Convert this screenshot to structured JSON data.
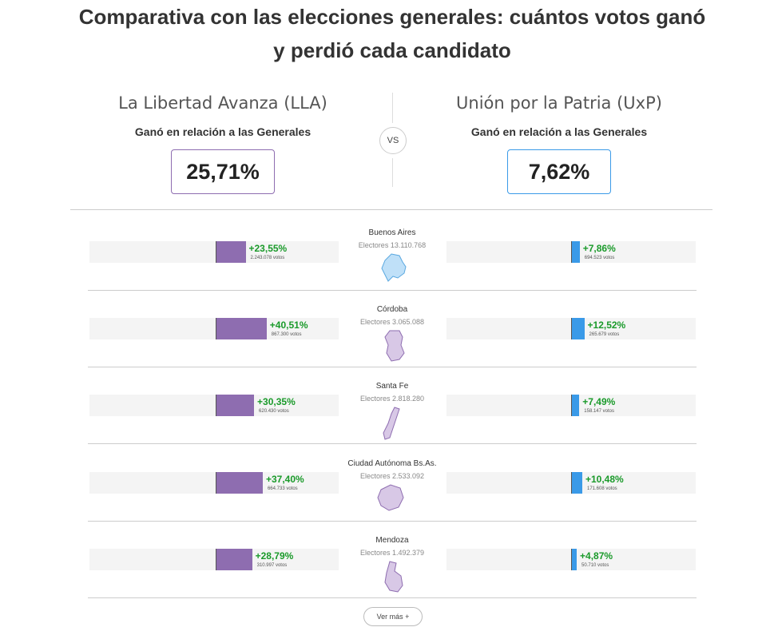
{
  "title_line1": "Comparativa con las elecciones generales: cuántos votos ganó",
  "title_line2": "y perdió cada candidato",
  "vs_label": "VS",
  "more_label": "Ver más +",
  "colors": {
    "lla": "#8e6db0",
    "uxp": "#3a9ae8",
    "positive": "#1a9a2a"
  },
  "lla": {
    "name": "La Libertad Avanza (LLA)",
    "subtitle": "Ganó en relación a las Generales",
    "value": "25,71%"
  },
  "uxp": {
    "name": "Unión por la Patria (UxP)",
    "subtitle": "Ganó en relación a las Generales",
    "value": "7,62%"
  },
  "chart_data": {
    "type": "bar",
    "categories": [
      "Buenos Aires",
      "Córdoba",
      "Santa Fe",
      "Ciudad Autónoma Bs.As.",
      "Mendoza"
    ],
    "electores": [
      "Electores 13.110.768",
      "Electores 3.065.088",
      "Electores 2.818.280",
      "Electores 2.533.092",
      "Electores 1.492.379"
    ],
    "series": [
      {
        "name": "La Libertad Avanza (LLA)",
        "values": [
          23.55,
          40.51,
          30.35,
          37.4,
          28.79
        ],
        "labels": [
          "+23,55%",
          "+40,51%",
          "+30,35%",
          "+37,40%",
          "+28,79%"
        ],
        "votes": [
          "2.243.078 votos",
          "867.300 votos",
          "620.430 votos",
          "664.733 votos",
          "310.997 votos"
        ]
      },
      {
        "name": "Unión por la Patria (UxP)",
        "values": [
          7.86,
          12.52,
          7.49,
          10.48,
          4.87
        ],
        "labels": [
          "+7,86%",
          "+12,52%",
          "+7,49%",
          "+10,48%",
          "+4,87%"
        ],
        "votes": [
          "694.523 votos",
          "265.679 votos",
          "158.147 votos",
          "171.608 votos",
          "50.710 votos"
        ]
      }
    ]
  }
}
